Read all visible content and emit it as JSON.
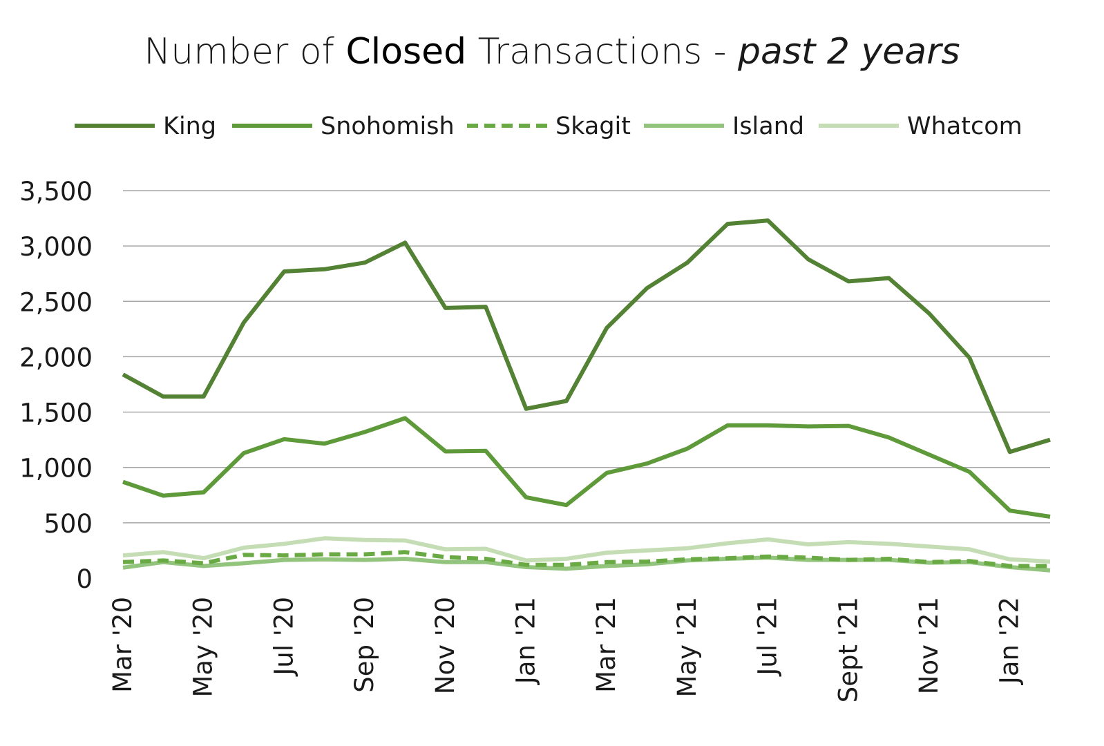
{
  "chart_data": {
    "type": "line",
    "title": {
      "prefix": "Number of ",
      "emphasis": "Closed",
      "middle": " Transactions - ",
      "italic": "past 2 years"
    },
    "xlabel": "",
    "ylabel": "",
    "ylim": [
      0,
      3500
    ],
    "yticks": [
      "0",
      "500",
      "1,000",
      "1,500",
      "2,000",
      "2,500",
      "3,000",
      "3,500"
    ],
    "ytick_values": [
      0,
      500,
      1000,
      1500,
      2000,
      2500,
      3000,
      3500
    ],
    "grid": true,
    "legend_position": "top",
    "categories": [
      "Mar '20",
      "Apr '20",
      "May '20",
      "Jun '20",
      "Jul '20",
      "Aug '20",
      "Sep '20",
      "Oct '20",
      "Nov '20",
      "Dec '20",
      "Jan '21",
      "Feb '21",
      "Mar '21",
      "Apr '21",
      "May '21",
      "Jun '21",
      "Jul '21",
      "Aug '21",
      "Sept '21",
      "Oct '21",
      "Nov '21",
      "Dec '21",
      "Jan '22",
      "Feb '22"
    ],
    "xtick_labels": [
      "Mar '20",
      "",
      "May '20",
      "",
      "Jul '20",
      "",
      "Sep '20",
      "",
      "Nov '20",
      "",
      "Jan '21",
      "",
      "Mar '21",
      "",
      "May '21",
      "",
      "Jul '21",
      "",
      "Sept '21",
      "",
      "Nov '21",
      "",
      "Jan '22",
      ""
    ],
    "series": [
      {
        "name": "King",
        "color": "#548235",
        "dash": "solid",
        "values": [
          1840,
          1640,
          1640,
          2310,
          2770,
          2790,
          2850,
          3030,
          2440,
          2450,
          1530,
          1600,
          2260,
          2620,
          2850,
          3200,
          3230,
          2880,
          2680,
          2710,
          2390,
          1990,
          1140,
          1250
        ]
      },
      {
        "name": "Snohomish",
        "color": "#5e9a3a",
        "dash": "solid",
        "values": [
          870,
          745,
          775,
          1130,
          1255,
          1215,
          1320,
          1445,
          1145,
          1150,
          730,
          660,
          950,
          1035,
          1170,
          1380,
          1380,
          1370,
          1375,
          1270,
          1115,
          960,
          610,
          555
        ]
      },
      {
        "name": "Skagit",
        "color": "#6aaa44",
        "dash": "dashed",
        "values": [
          145,
          160,
          135,
          210,
          205,
          215,
          215,
          235,
          190,
          175,
          120,
          120,
          145,
          150,
          170,
          180,
          195,
          185,
          165,
          175,
          145,
          155,
          110,
          110
        ]
      },
      {
        "name": "Island",
        "color": "#93c47d",
        "dash": "solid",
        "values": [
          95,
          145,
          110,
          135,
          165,
          170,
          165,
          175,
          145,
          145,
          100,
          85,
          110,
          125,
          160,
          175,
          185,
          165,
          165,
          165,
          140,
          145,
          100,
          70
        ]
      },
      {
        "name": "Whatcom",
        "color": "#c5ddb4",
        "dash": "solid",
        "values": [
          205,
          235,
          180,
          275,
          310,
          360,
          345,
          340,
          260,
          265,
          160,
          175,
          230,
          250,
          270,
          315,
          350,
          305,
          325,
          310,
          285,
          260,
          170,
          150
        ]
      }
    ]
  }
}
